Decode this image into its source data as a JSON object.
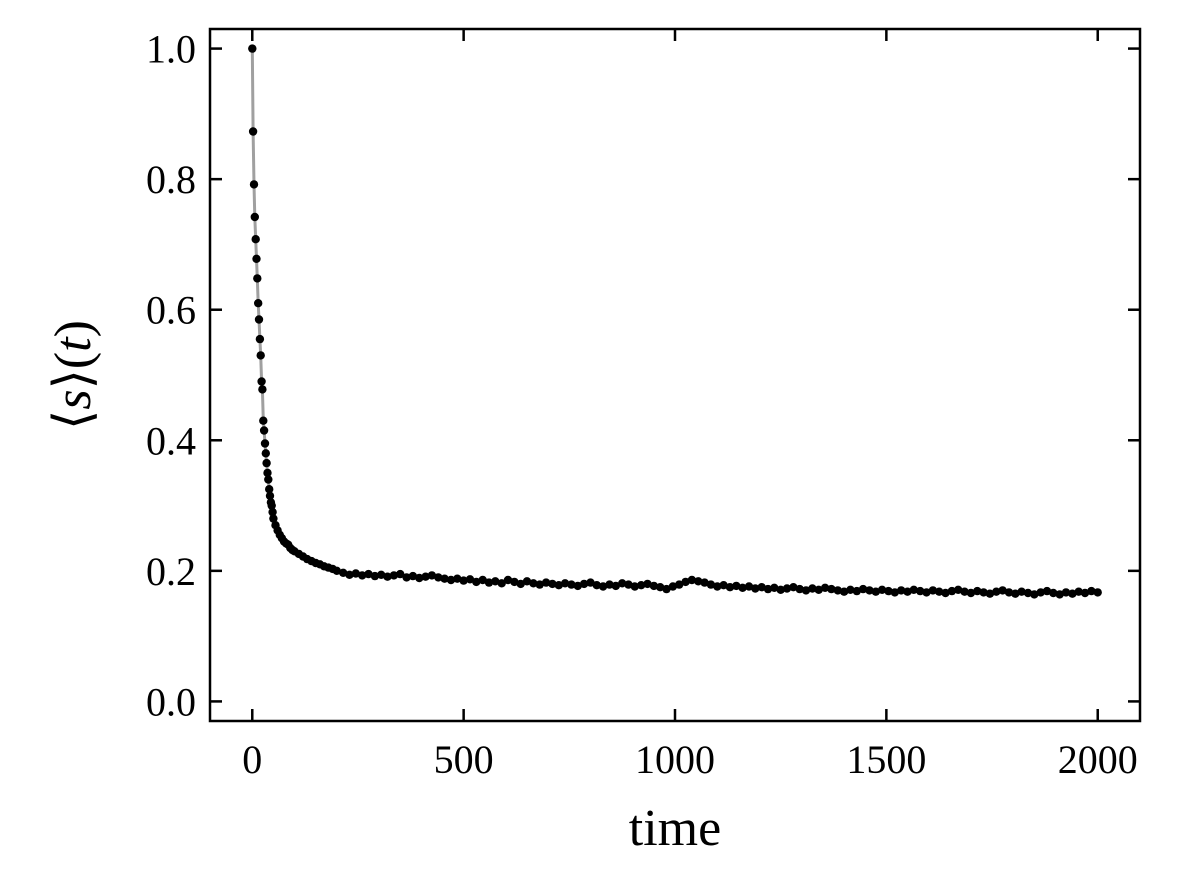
{
  "chart_data": {
    "type": "scatter",
    "xlabel": "time",
    "ylabel": {
      "open": "⟨",
      "var": "s",
      "close": "⟩",
      "paren_open": "(",
      "arg": "t",
      "paren_close": ")"
    },
    "xlim": [
      -100,
      2100
    ],
    "ylim": [
      -0.03,
      1.03
    ],
    "xticks": [
      0,
      500,
      1000,
      1500,
      2000
    ],
    "xtick_labels": [
      "0",
      "500",
      "1000",
      "1500",
      "2000"
    ],
    "yticks": [
      0.0,
      0.2,
      0.4,
      0.6,
      0.8,
      1.0
    ],
    "ytick_labels": [
      "0.0",
      "0.2",
      "0.4",
      "0.6",
      "0.8",
      "1.0"
    ],
    "grid": false,
    "colors": {
      "markers": "#000000",
      "line": "#a0a0a0"
    },
    "series": [
      {
        "x": [
          0,
          2,
          4,
          6,
          8,
          10,
          12,
          14,
          16,
          18,
          20,
          22,
          24,
          26,
          28,
          30,
          32,
          34,
          36,
          38,
          40,
          42,
          44,
          46,
          48,
          50,
          55,
          60,
          65,
          70,
          75,
          80,
          85,
          90,
          95,
          100,
          110,
          120,
          130,
          140,
          150,
          160,
          170,
          180,
          190,
          200,
          215,
          230,
          245,
          260,
          275,
          290,
          305,
          320,
          335,
          350,
          365,
          380,
          395,
          410,
          425,
          440,
          455,
          470,
          485,
          500,
          515,
          530,
          545,
          560,
          575,
          590,
          605,
          620,
          635,
          650,
          665,
          680,
          695,
          710,
          725,
          740,
          755,
          770,
          785,
          800,
          815,
          830,
          845,
          860,
          875,
          890,
          905,
          920,
          935,
          950,
          965,
          980,
          995,
          1010,
          1025,
          1040,
          1055,
          1070,
          1085,
          1100,
          1115,
          1130,
          1145,
          1160,
          1175,
          1190,
          1205,
          1220,
          1235,
          1250,
          1265,
          1280,
          1295,
          1310,
          1325,
          1340,
          1355,
          1370,
          1385,
          1400,
          1415,
          1430,
          1445,
          1460,
          1475,
          1490,
          1505,
          1520,
          1535,
          1550,
          1565,
          1580,
          1595,
          1610,
          1625,
          1640,
          1655,
          1670,
          1685,
          1700,
          1715,
          1730,
          1745,
          1760,
          1775,
          1790,
          1805,
          1820,
          1835,
          1850,
          1865,
          1880,
          1895,
          1910,
          1925,
          1940,
          1955,
          1970,
          1985,
          2000
        ],
        "y": [
          1.0,
          0.873,
          0.792,
          0.742,
          0.708,
          0.678,
          0.648,
          0.61,
          0.585,
          0.555,
          0.53,
          0.49,
          0.478,
          0.43,
          0.415,
          0.395,
          0.38,
          0.365,
          0.35,
          0.34,
          0.325,
          0.315,
          0.305,
          0.3,
          0.29,
          0.28,
          0.27,
          0.262,
          0.255,
          0.25,
          0.245,
          0.242,
          0.24,
          0.235,
          0.232,
          0.23,
          0.226,
          0.222,
          0.218,
          0.215,
          0.212,
          0.21,
          0.207,
          0.205,
          0.203,
          0.2,
          0.197,
          0.194,
          0.196,
          0.193,
          0.195,
          0.192,
          0.194,
          0.191,
          0.193,
          0.195,
          0.19,
          0.192,
          0.189,
          0.191,
          0.193,
          0.19,
          0.188,
          0.186,
          0.188,
          0.185,
          0.187,
          0.183,
          0.186,
          0.182,
          0.184,
          0.181,
          0.186,
          0.183,
          0.18,
          0.184,
          0.181,
          0.179,
          0.182,
          0.18,
          0.178,
          0.181,
          0.179,
          0.177,
          0.18,
          0.182,
          0.178,
          0.176,
          0.179,
          0.177,
          0.181,
          0.179,
          0.176,
          0.178,
          0.18,
          0.177,
          0.175,
          0.172,
          0.176,
          0.179,
          0.183,
          0.186,
          0.184,
          0.182,
          0.179,
          0.176,
          0.178,
          0.175,
          0.177,
          0.174,
          0.176,
          0.173,
          0.175,
          0.172,
          0.174,
          0.171,
          0.173,
          0.175,
          0.172,
          0.17,
          0.173,
          0.171,
          0.174,
          0.172,
          0.17,
          0.168,
          0.171,
          0.169,
          0.172,
          0.17,
          0.168,
          0.171,
          0.169,
          0.167,
          0.17,
          0.168,
          0.171,
          0.169,
          0.167,
          0.17,
          0.168,
          0.166,
          0.169,
          0.171,
          0.168,
          0.166,
          0.169,
          0.167,
          0.165,
          0.168,
          0.17,
          0.167,
          0.165,
          0.168,
          0.166,
          0.164,
          0.167,
          0.169,
          0.166,
          0.164,
          0.167,
          0.165,
          0.168,
          0.166,
          0.169,
          0.167
        ]
      }
    ]
  }
}
